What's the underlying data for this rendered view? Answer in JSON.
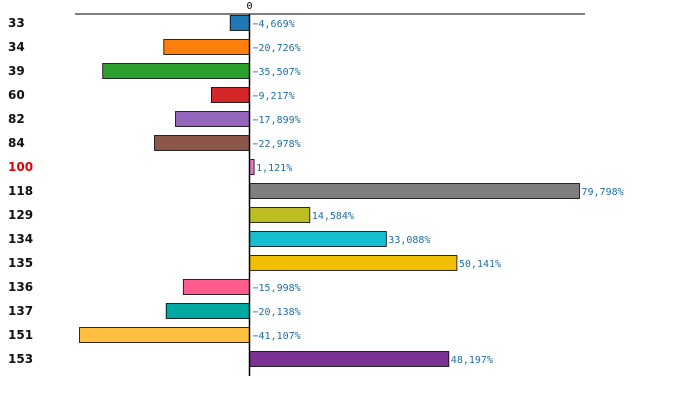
{
  "chart_data": {
    "type": "bar",
    "orientation": "horizontal",
    "categories": [
      "33",
      "34",
      "39",
      "60",
      "82",
      "84",
      "100",
      "118",
      "129",
      "134",
      "135",
      "136",
      "137",
      "151",
      "153"
    ],
    "values": [
      -4.669,
      -20.726,
      -35.507,
      -9.217,
      -17.899,
      -22.978,
      1.121,
      79.798,
      14.584,
      33.088,
      50.141,
      -15.998,
      -20.138,
      -41.107,
      48.197
    ],
    "value_labels": [
      "−4,669%",
      "−20,726%",
      "−35,507%",
      "−9,217%",
      "−17,899%",
      "−22,978%",
      "1,121%",
      "79,798%",
      "14,584%",
      "33,088%",
      "50,141%",
      "−15,998%",
      "−20,138%",
      "−41,107%",
      "48,197%"
    ],
    "colors": [
      "#1f77b4",
      "#ff7f0e",
      "#2ca02c",
      "#d62728",
      "#9467bd",
      "#8c564b",
      "#e377c2",
      "#7f7f7f",
      "#bcbd22",
      "#17becf",
      "#f0c000",
      "#ff5c8d",
      "#00aaa0",
      "#ffc040",
      "#7b3294"
    ],
    "highlight_category": "100",
    "highlight_color": "#e00000",
    "x_tick_labels": [
      "0"
    ],
    "xlim": [
      -42,
      81
    ],
    "title": "",
    "xlabel": "",
    "ylabel": "",
    "grid": false,
    "legend": "none"
  }
}
